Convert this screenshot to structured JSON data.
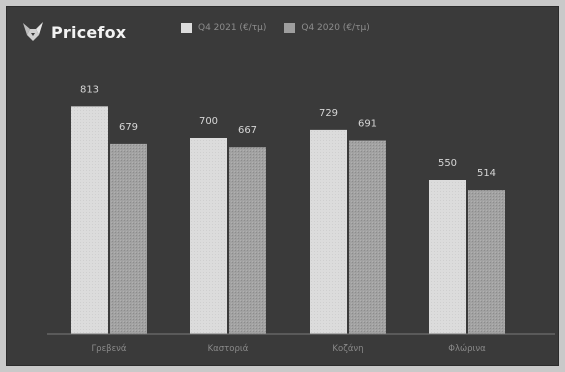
{
  "brand": {
    "name": "Pricefox",
    "logo_icon": "fox-icon"
  },
  "colors": {
    "background": "#3a3a3a",
    "series_2021": "#dcdcdc",
    "series_2020": "#9e9e9e",
    "axis": "#7a7a7a"
  },
  "chart_data": {
    "type": "bar",
    "title": "",
    "xlabel": "",
    "ylabel": "",
    "categories": [
      "Γρεβενά",
      "Καστοριά",
      "Κοζάνη",
      "Φλώρινα"
    ],
    "series": [
      {
        "name": "Q4 2021 (€/τμ)",
        "values": [
          813,
          700,
          729,
          550
        ]
      },
      {
        "name": "Q4 2020 (€/τμ)",
        "values": [
          679,
          667,
          691,
          514
        ]
      }
    ],
    "ylim": [
      0,
      900
    ],
    "grid": false,
    "legend_position": "top"
  }
}
